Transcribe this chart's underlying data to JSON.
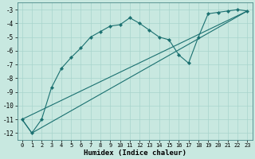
{
  "xlabel": "Humidex (Indice chaleur)",
  "xlim": [
    -0.5,
    23.5
  ],
  "ylim": [
    -12.5,
    -2.5
  ],
  "yticks": [
    -12,
    -11,
    -10,
    -9,
    -8,
    -7,
    -6,
    -5,
    -4,
    -3
  ],
  "xticks": [
    0,
    1,
    2,
    3,
    4,
    5,
    6,
    7,
    8,
    9,
    10,
    11,
    12,
    13,
    14,
    15,
    16,
    17,
    18,
    19,
    20,
    21,
    22,
    23
  ],
  "background_color": "#c8e8e0",
  "grid_color": "#a8d4cc",
  "line_color": "#1a7070",
  "line1_x": [
    0,
    1,
    2,
    3,
    4,
    5,
    6,
    7,
    8,
    9,
    10,
    11,
    12,
    13,
    14,
    15,
    16,
    17,
    18,
    19,
    20,
    21,
    22,
    23
  ],
  "line1_y": [
    -11.0,
    -12.0,
    -11.0,
    -8.7,
    -7.3,
    -6.5,
    -5.8,
    -5.0,
    -4.6,
    -4.2,
    -4.1,
    -3.6,
    -4.0,
    -4.5,
    -5.0,
    -5.2,
    -6.3,
    -6.9,
    -5.0,
    -3.3,
    -3.2,
    -3.1,
    -3.0,
    -3.1
  ],
  "line2_x": [
    0,
    23
  ],
  "line2_y": [
    -11.0,
    -3.1
  ],
  "line3_x": [
    0,
    1,
    23
  ],
  "line3_y": [
    -11.0,
    -12.0,
    -3.1
  ],
  "tick_fontsize": 5.0,
  "xlabel_fontsize": 6.5
}
